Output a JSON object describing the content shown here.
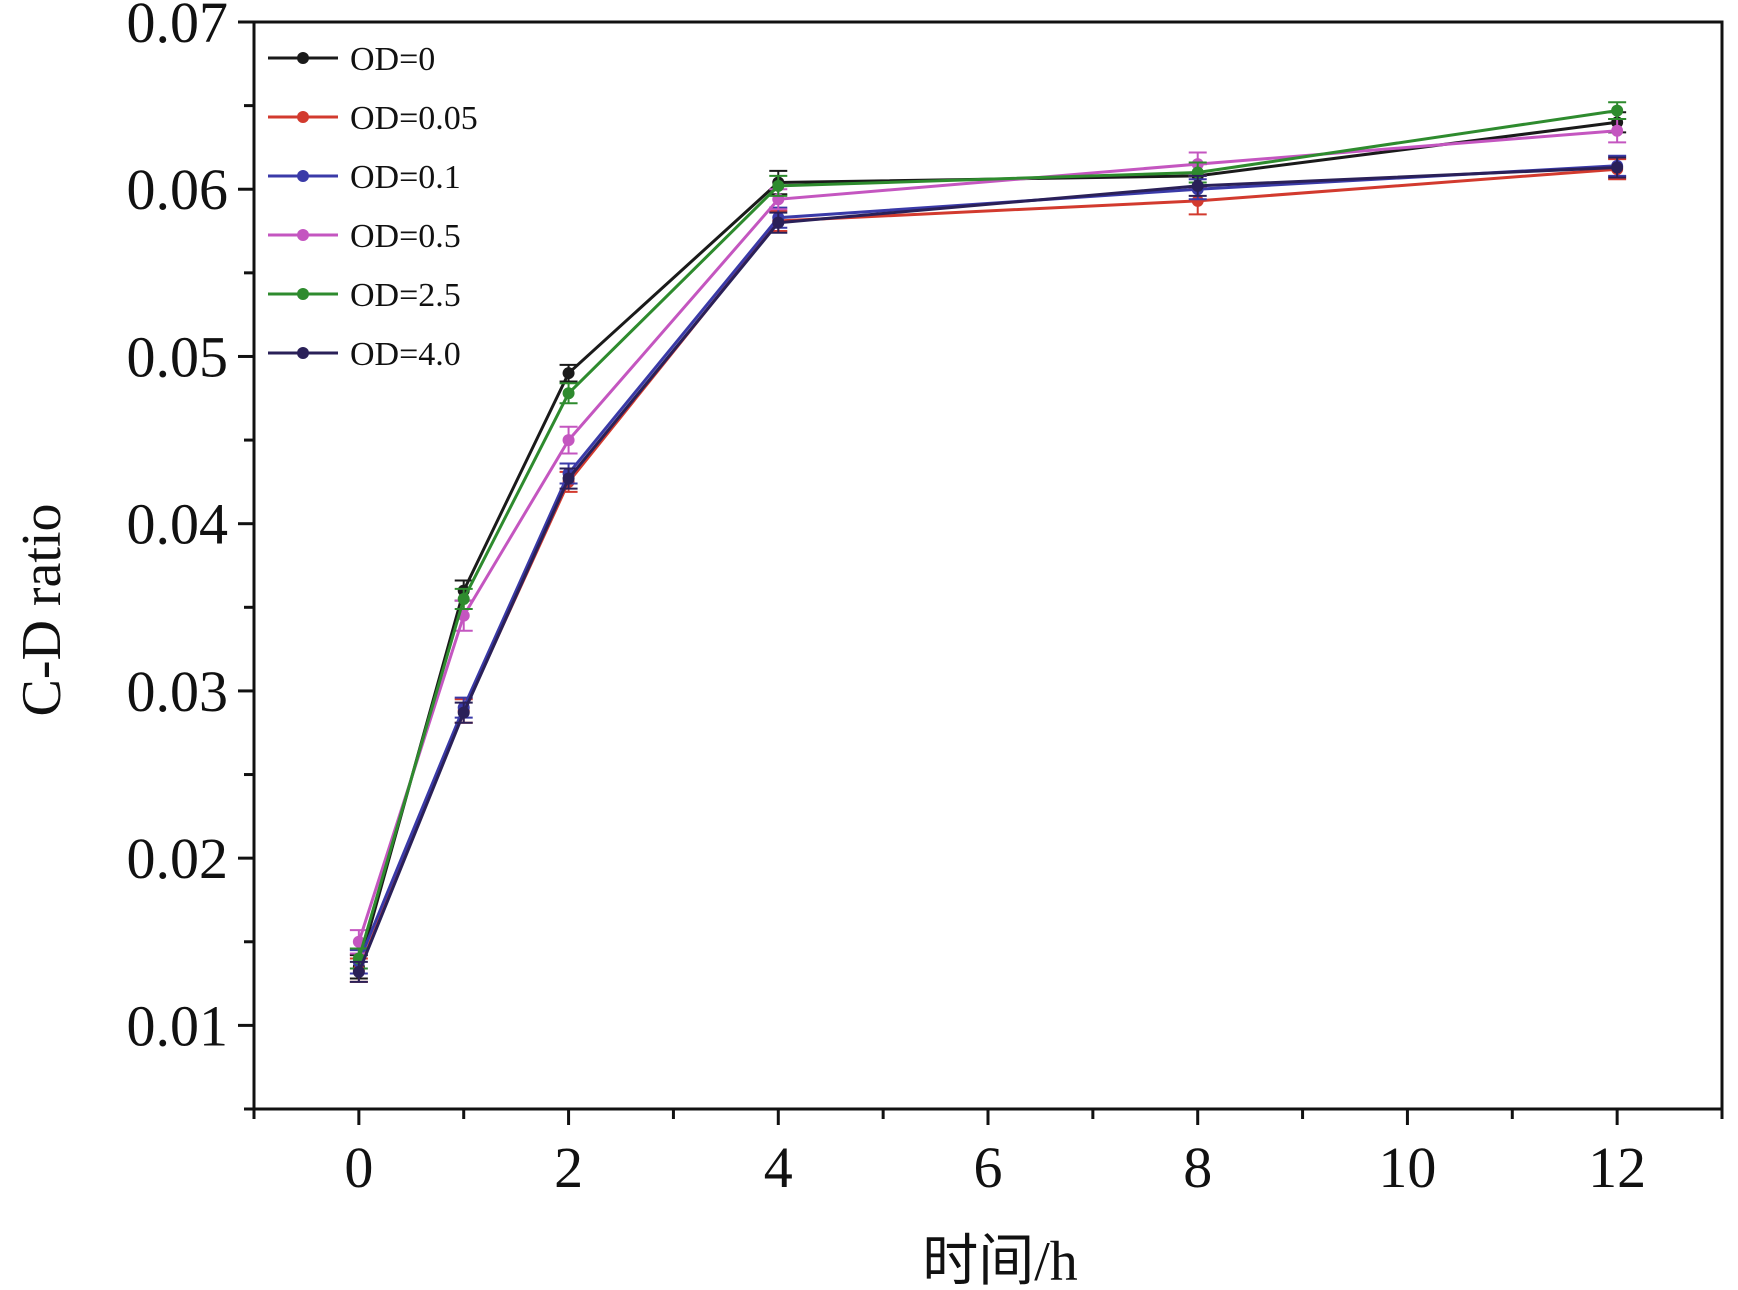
{
  "chart_data": {
    "type": "line",
    "xlabel": "时间/h",
    "ylabel": "C-D ratio",
    "xlim": [
      -1,
      13
    ],
    "ylim": [
      0.005,
      0.07
    ],
    "x_ticks": [
      0,
      2,
      4,
      6,
      8,
      10,
      12
    ],
    "x_tick_labels": [
      "0",
      "2",
      "4",
      "6",
      "8",
      "10",
      "12"
    ],
    "y_ticks": [
      0.01,
      0.02,
      0.03,
      0.04,
      0.05,
      0.06,
      0.07
    ],
    "y_tick_labels": [
      "0.01",
      "0.02",
      "0.03",
      "0.04",
      "0.05",
      "0.06",
      "0.07"
    ],
    "x": [
      0,
      1,
      2,
      4,
      8,
      12
    ],
    "legend_position": "top-left",
    "grid": false,
    "series": [
      {
        "name": "OD=0",
        "color": "#1a1a1a",
        "values": [
          0.0135,
          0.036,
          0.049,
          0.0604,
          0.0608,
          0.064
        ],
        "errors": [
          0.0007,
          0.0006,
          0.0005,
          0.0007,
          0.0007,
          0.0006
        ]
      },
      {
        "name": "OD=0.05",
        "color": "#d23a2e",
        "values": [
          0.0133,
          0.0288,
          0.0425,
          0.0581,
          0.0593,
          0.0612
        ],
        "errors": [
          0.0007,
          0.0007,
          0.0006,
          0.0006,
          0.0008,
          0.0006
        ]
      },
      {
        "name": "OD=0.1",
        "color": "#3a3aa8",
        "values": [
          0.0138,
          0.029,
          0.043,
          0.0583,
          0.06,
          0.0614
        ],
        "errors": [
          0.0007,
          0.0006,
          0.0006,
          0.0006,
          0.0006,
          0.0006
        ]
      },
      {
        "name": "OD=0.5",
        "color": "#c456c0",
        "values": [
          0.015,
          0.0345,
          0.045,
          0.0594,
          0.0615,
          0.0635
        ],
        "errors": [
          0.0007,
          0.0009,
          0.0008,
          0.0006,
          0.0007,
          0.0007
        ]
      },
      {
        "name": "OD=2.5",
        "color": "#2e8b2e",
        "values": [
          0.014,
          0.0355,
          0.0478,
          0.0602,
          0.061,
          0.0647
        ],
        "errors": [
          0.0006,
          0.0006,
          0.0006,
          0.0006,
          0.0006,
          0.0005
        ]
      },
      {
        "name": "OD=4.0",
        "color": "#2a2058",
        "values": [
          0.0132,
          0.0287,
          0.0427,
          0.058,
          0.0602,
          0.0613
        ],
        "errors": [
          0.0006,
          0.0006,
          0.0006,
          0.0006,
          0.0006,
          0.0006
        ]
      }
    ]
  }
}
